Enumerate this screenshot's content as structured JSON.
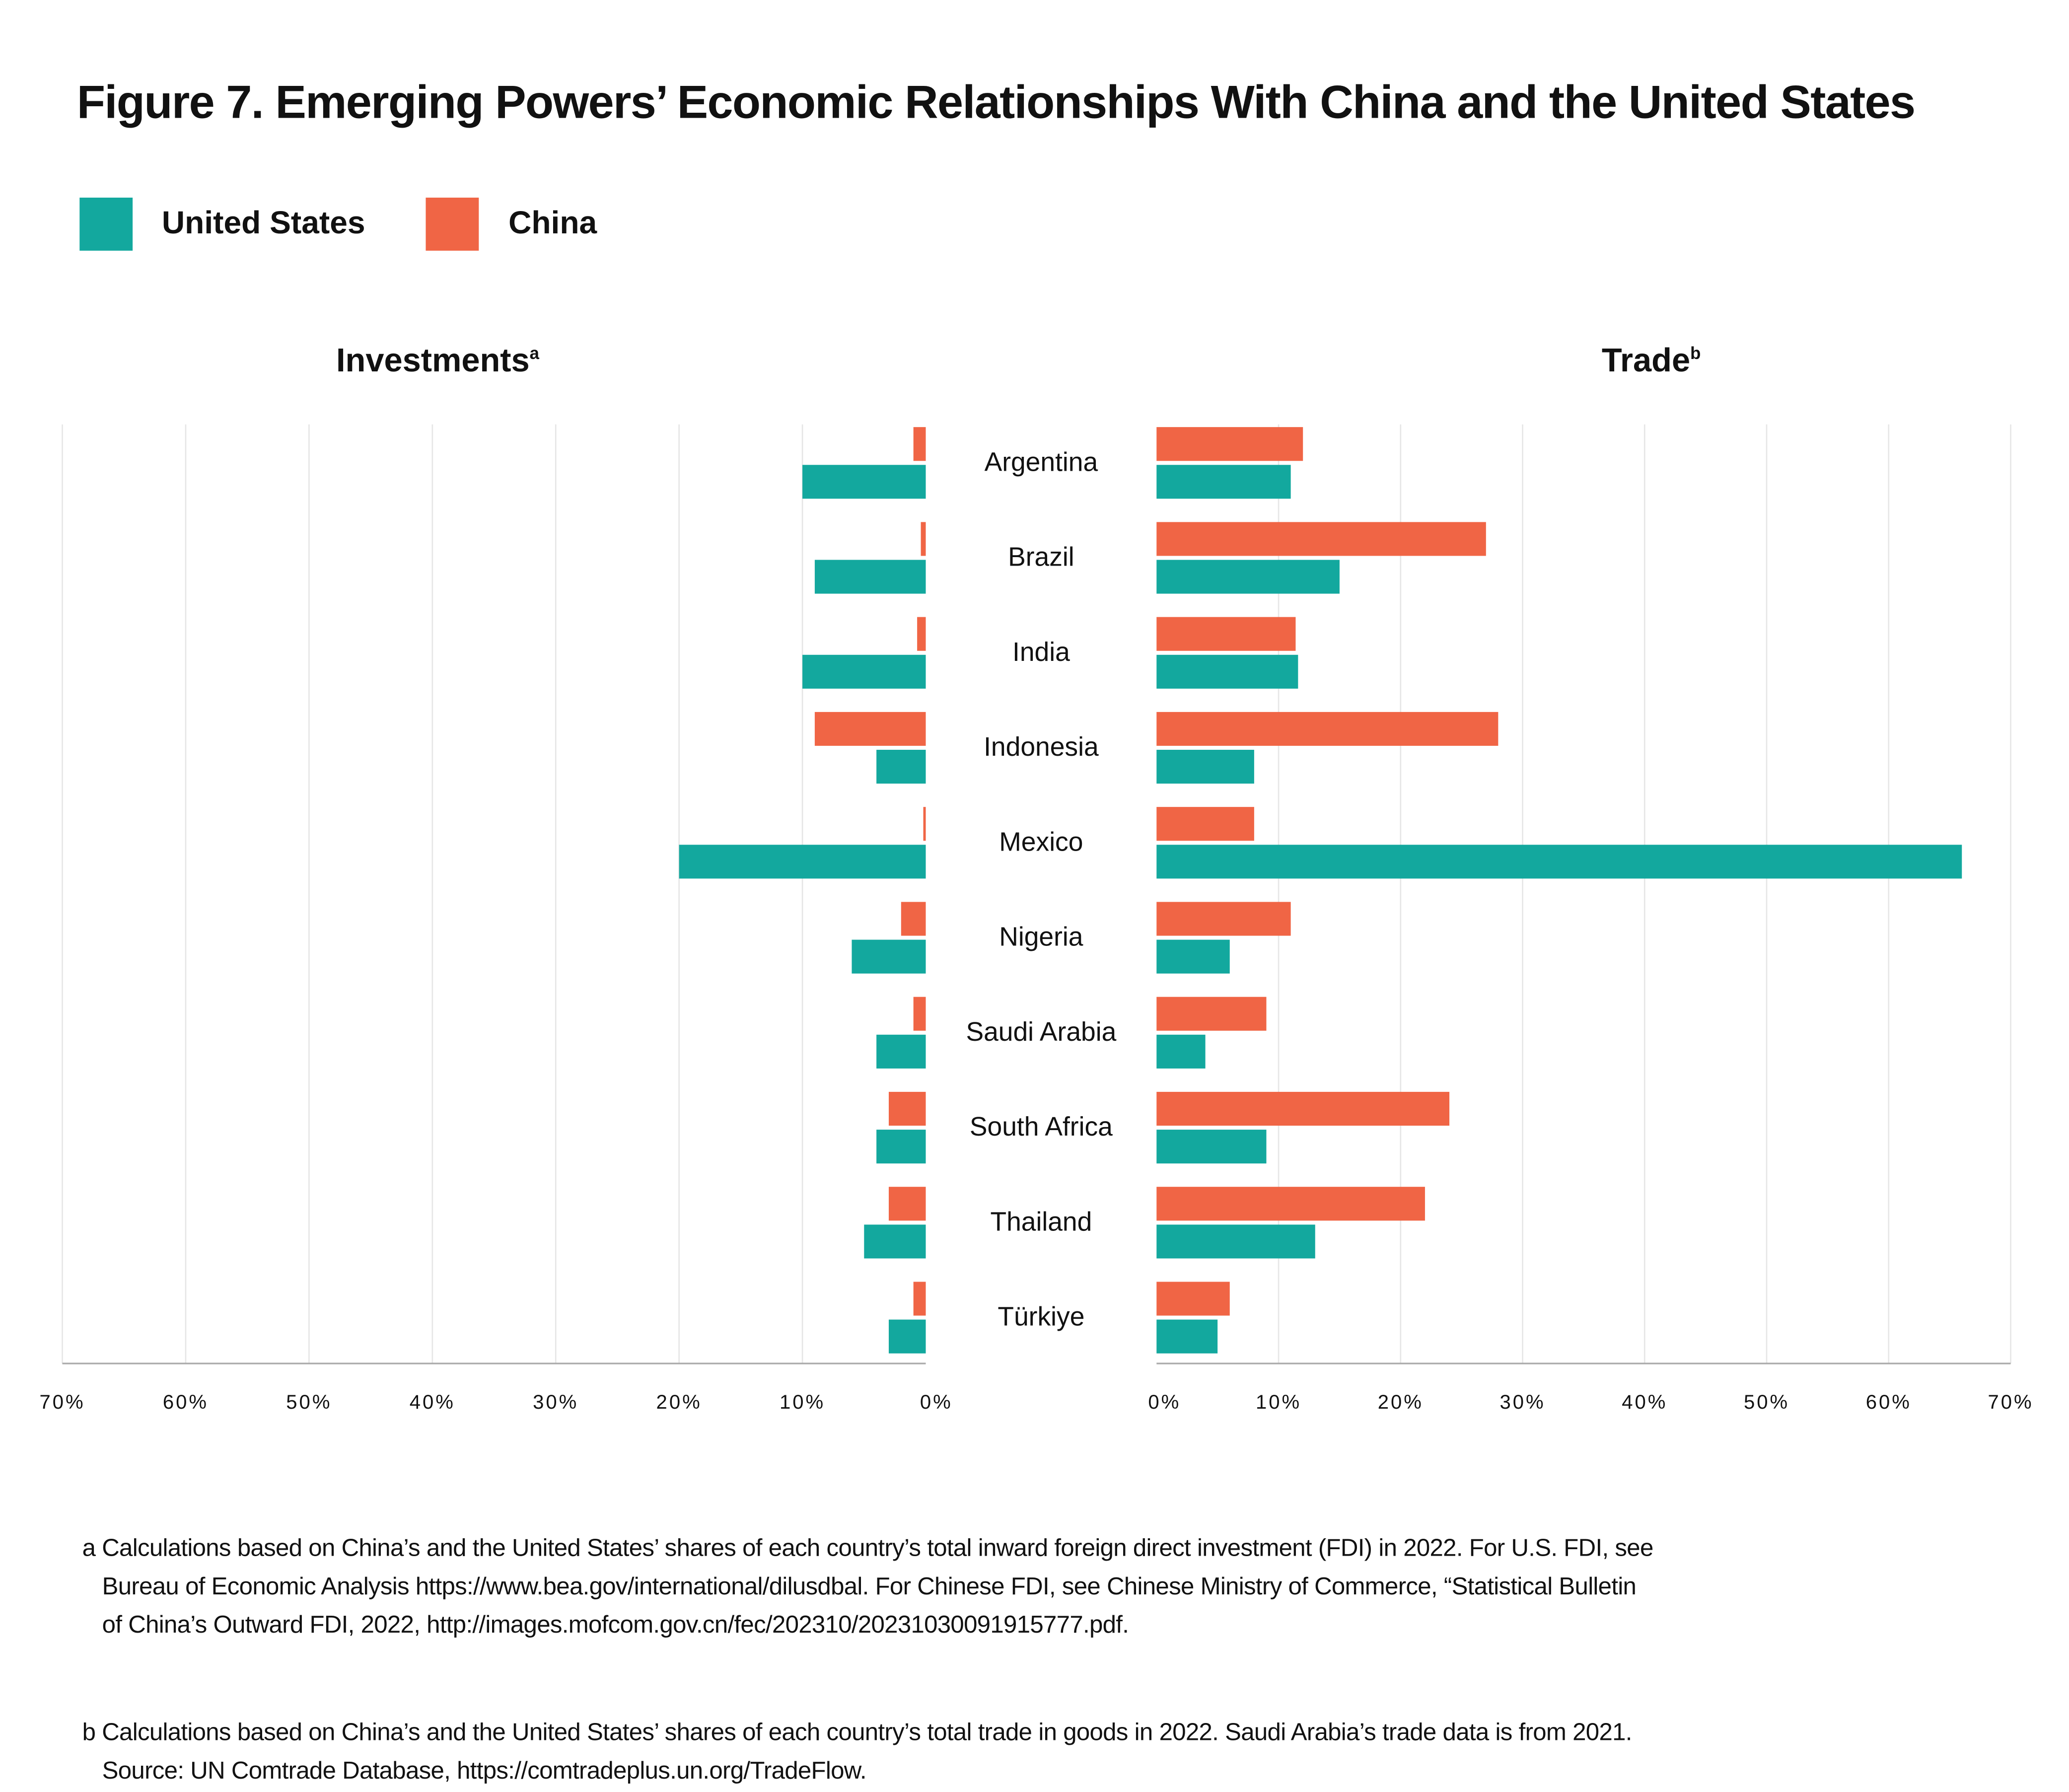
{
  "title": "Figure 7. Emerging Powers’ Economic Relationships With China and the United States",
  "colors": {
    "united_states": "#13A89E",
    "china": "#F06545",
    "grid": "#E6E6E6",
    "axis": "#AAAAAA"
  },
  "legend": [
    {
      "label": "United States",
      "color": "#13A89E"
    },
    {
      "label": "China",
      "color": "#F06545"
    }
  ],
  "chart_data": [
    {
      "type": "bar",
      "orientation": "horizontal",
      "direction": "leftward",
      "title": "Investments",
      "title_superscript": "a",
      "categories": [
        "Argentina",
        "Brazil",
        "India",
        "Indonesia",
        "Mexico",
        "Nigeria",
        "Saudi Arabia",
        "South Africa",
        "Thailand",
        "Türkiye"
      ],
      "series": [
        {
          "name": "China",
          "values": [
            1.0,
            0.4,
            0.7,
            9.0,
            0.2,
            2.0,
            1.0,
            3.0,
            3.0,
            1.0
          ]
        },
        {
          "name": "United States",
          "values": [
            10.0,
            9.0,
            10.0,
            4.0,
            20.0,
            6.0,
            4.0,
            4.0,
            5.0,
            3.0
          ]
        }
      ],
      "xlim": [
        0,
        70
      ],
      "ticks": [
        "70%",
        "60%",
        "50%",
        "40%",
        "30%",
        "20%",
        "10%",
        "0%"
      ],
      "grid": true
    },
    {
      "type": "bar",
      "orientation": "horizontal",
      "direction": "rightward",
      "title": "Trade",
      "title_superscript": "b",
      "categories": [
        "Argentina",
        "Brazil",
        "India",
        "Indonesia",
        "Mexico",
        "Nigeria",
        "Saudi Arabia",
        "South Africa",
        "Thailand",
        "Türkiye"
      ],
      "series": [
        {
          "name": "China",
          "values": [
            12.0,
            27.0,
            11.4,
            28.0,
            8.0,
            11.0,
            9.0,
            24.0,
            22.0,
            6.0
          ]
        },
        {
          "name": "United States",
          "values": [
            11.0,
            15.0,
            11.6,
            8.0,
            66.0,
            6.0,
            4.0,
            9.0,
            13.0,
            5.0
          ]
        }
      ],
      "xlim": [
        0,
        70
      ],
      "ticks": [
        "0%",
        "10%",
        "20%",
        "30%",
        "40%",
        "50%",
        "60%",
        "70%"
      ],
      "grid": true
    }
  ],
  "footnotes": [
    {
      "lines": [
        "a Calculations based on China’s and the United States’ shares of each country’s total inward foreign direct investment (FDI) in 2022. For U.S. FDI, see",
        "Bureau of Economic Analysis https://www.bea.gov/international/dilusdbal. For Chinese FDI, see Chinese Ministry of Commerce, “Statistical Bulletin",
        "of China’s Outward FDI, 2022, http://images.mofcom.gov.cn/fec/202310/20231030091915777.pdf."
      ]
    },
    {
      "lines": [
        "b Calculations based on China’s and the United States’ shares of each country’s total trade in goods in 2022. Saudi Arabia’s trade data is from 2021.",
        "Source: UN Comtrade Database, https://comtradeplus.un.org/TradeFlow."
      ]
    }
  ]
}
